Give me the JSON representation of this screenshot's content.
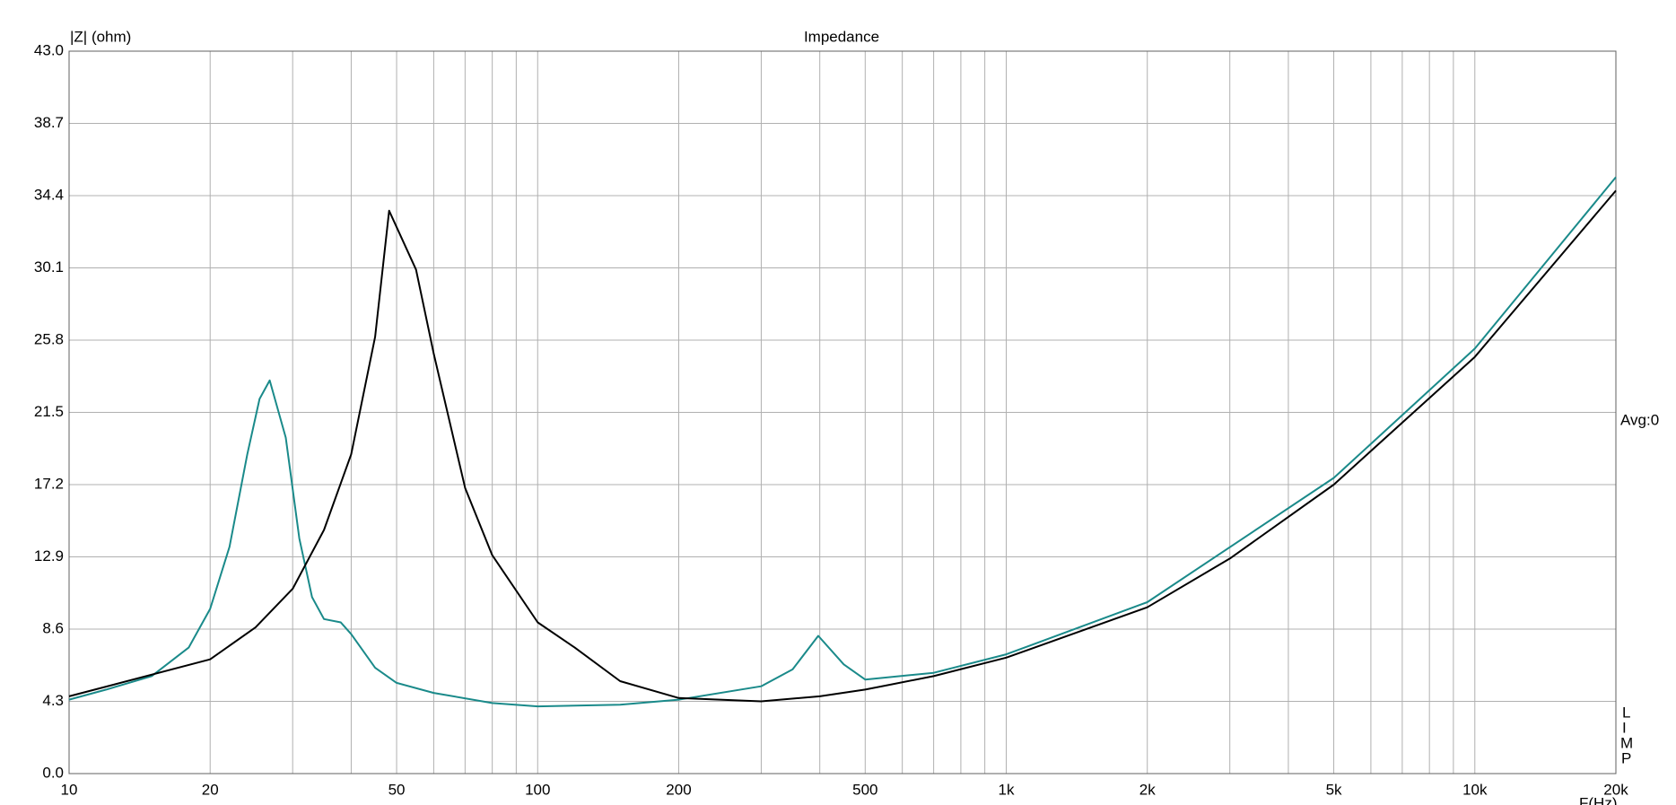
{
  "chart_data": {
    "type": "line",
    "title": "Impedance",
    "ylabel": "|Z| (ohm)",
    "xlabel": "F(Hz)",
    "annotations": [
      "Avg:0",
      "L",
      "I",
      "M",
      "P"
    ],
    "xscale": "log",
    "xlim": [
      10,
      20000
    ],
    "xticks": [
      10,
      20,
      50,
      100,
      200,
      500,
      {
        "value": 1000,
        "label": "1k"
      },
      {
        "value": 2000,
        "label": "2k"
      },
      {
        "value": 5000,
        "label": "5k"
      },
      {
        "value": 10000,
        "label": "10k"
      },
      {
        "value": 20000,
        "label": "20k"
      }
    ],
    "xminor": [
      30,
      40,
      60,
      70,
      80,
      90,
      300,
      400,
      600,
      700,
      800,
      900,
      3000,
      4000,
      6000,
      7000,
      8000,
      9000
    ],
    "ylim": [
      0,
      43
    ],
    "yticks": [
      {
        "value": 0,
        "label": "0.0"
      },
      4.3,
      8.6,
      12.9,
      17.2,
      21.5,
      25.8,
      30.1,
      34.4,
      38.7,
      {
        "value": 43,
        "label": "43.0"
      }
    ],
    "grid": true,
    "series": [
      {
        "color": "#1a8a8a",
        "x": [
          10,
          12,
          15,
          18,
          20,
          22,
          24,
          25.5,
          26.8,
          29,
          31,
          33,
          35,
          38,
          40,
          45,
          50,
          60,
          80,
          100,
          150,
          200,
          300,
          350,
          397,
          450,
          500,
          700,
          1000,
          2000,
          5000,
          10000,
          20000
        ],
        "values": [
          4.4,
          5.0,
          5.8,
          7.5,
          9.8,
          13.5,
          19,
          22.3,
          23.4,
          20,
          14,
          10.5,
          9.2,
          9.0,
          8.3,
          6.3,
          5.4,
          4.8,
          4.2,
          4.0,
          4.1,
          4.4,
          5.2,
          6.2,
          8.2,
          6.5,
          5.6,
          6.0,
          7.1,
          10.2,
          17.6,
          25.3,
          35.5
        ]
      },
      {
        "color": "#000000",
        "x": [
          10,
          20,
          25,
          30,
          35,
          40,
          45,
          48.2,
          55,
          60,
          70,
          80,
          100,
          120,
          150,
          200,
          300,
          400,
          500,
          700,
          1000,
          2000,
          3000,
          5000,
          10000,
          20000
        ],
        "values": [
          4.6,
          6.8,
          8.7,
          11,
          14.5,
          19,
          26,
          33.5,
          30,
          25,
          17,
          13,
          9,
          7.5,
          5.5,
          4.5,
          4.3,
          4.6,
          5.0,
          5.8,
          6.9,
          9.9,
          12.8,
          17.2,
          24.8,
          34.7
        ]
      }
    ]
  }
}
